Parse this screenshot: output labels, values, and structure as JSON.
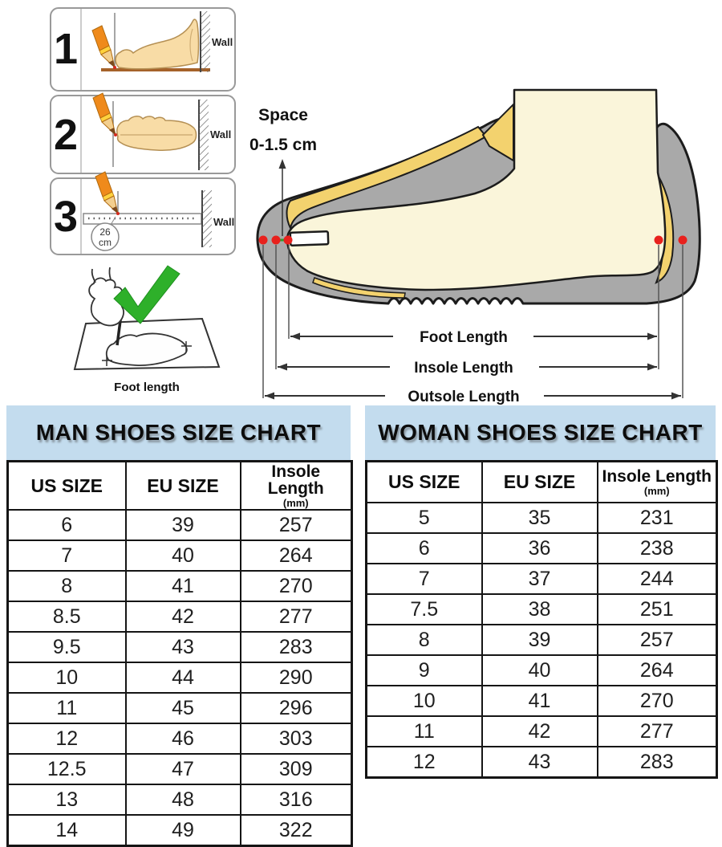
{
  "instructions": {
    "steps": [
      {
        "number": "1",
        "wall": "Wall"
      },
      {
        "number": "2",
        "wall": "Wall"
      },
      {
        "number": "3",
        "wall": "Wall",
        "ruler_value": "26",
        "ruler_unit": "cm"
      }
    ],
    "caption": "Foot length"
  },
  "diagram": {
    "space_line1": "Space",
    "space_line2": "0-1.5 cm",
    "foot_length": "Foot Length",
    "insole_length": "Insole Length",
    "outsole_length": "Outsole Length"
  },
  "tables_ui": {
    "col1": "US SIZE",
    "col2": "EU SIZE",
    "col3_main": "Insole Length",
    "col3_sub": "(mm)"
  },
  "chart_data": [
    {
      "type": "table",
      "title": "MAN SHOES SIZE CHART",
      "columns": [
        "US SIZE",
        "EU SIZE",
        "Insole Length (mm)"
      ],
      "rows": [
        [
          "6",
          "39",
          "257"
        ],
        [
          "7",
          "40",
          "264"
        ],
        [
          "8",
          "41",
          "270"
        ],
        [
          "8.5",
          "42",
          "277"
        ],
        [
          "9.5",
          "43",
          "283"
        ],
        [
          "10",
          "44",
          "290"
        ],
        [
          "11",
          "45",
          "296"
        ],
        [
          "12",
          "46",
          "303"
        ],
        [
          "12.5",
          "47",
          "309"
        ],
        [
          "13",
          "48",
          "316"
        ],
        [
          "14",
          "49",
          "322"
        ]
      ]
    },
    {
      "type": "table",
      "title": "WOMAN SHOES SIZE CHART",
      "columns": [
        "US SIZE",
        "EU SIZE",
        "Insole Length (mm)"
      ],
      "rows": [
        [
          "5",
          "35",
          "231"
        ],
        [
          "6",
          "36",
          "238"
        ],
        [
          "7",
          "37",
          "244"
        ],
        [
          "7.5",
          "38",
          "251"
        ],
        [
          "8",
          "39",
          "257"
        ],
        [
          "9",
          "40",
          "264"
        ],
        [
          "10",
          "41",
          "270"
        ],
        [
          "11",
          "42",
          "277"
        ],
        [
          "12",
          "43",
          "283"
        ]
      ]
    }
  ],
  "colors": {
    "banner_blue": "#c3dcee",
    "shoe_gray": "#a9a9a9",
    "foot_cream": "#faf5da",
    "lining_yellow": "#f3d26e",
    "marker_red": "#e8211d",
    "check_green": "#2eb02a",
    "skin": "#f8dca6",
    "pencil_orange": "#ef8a1b"
  }
}
